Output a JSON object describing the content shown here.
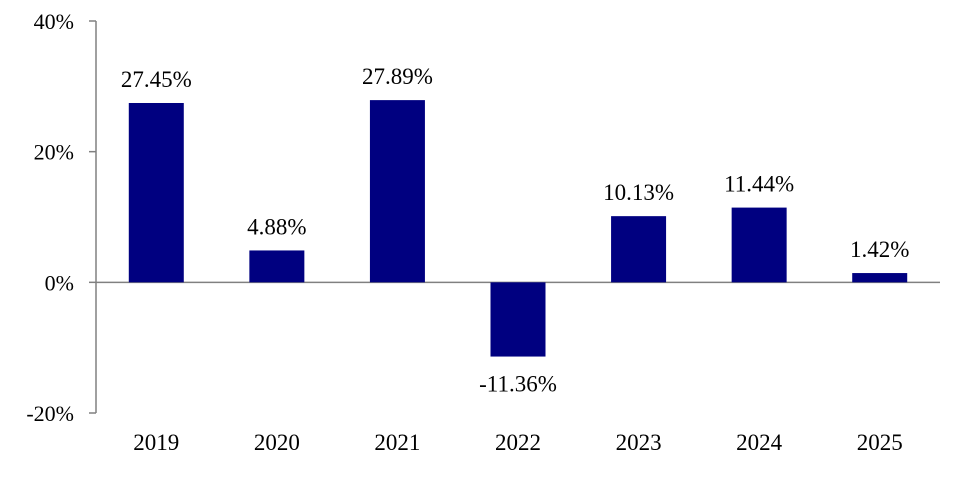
{
  "colors": {
    "bar": "#000080",
    "axis": "#808080"
  },
  "chart_data": {
    "type": "bar",
    "title": "",
    "xlabel": "",
    "ylabel": "",
    "categories": [
      "2019",
      "2020",
      "2021",
      "2022",
      "2023",
      "2024",
      "2025"
    ],
    "values": [
      27.45,
      4.88,
      27.89,
      -11.36,
      10.13,
      11.44,
      1.42
    ],
    "data_labels": [
      "27.45%",
      "4.88%",
      "27.89%",
      "-11.36%",
      "10.13%",
      "11.44%",
      "1.42%"
    ],
    "ylim": [
      -20,
      40
    ],
    "yticks": [
      40,
      20,
      0,
      -20
    ],
    "ytick_labels": [
      "40%",
      "20%",
      "0%",
      "-20%"
    ],
    "grid": false,
    "legend": "none"
  }
}
